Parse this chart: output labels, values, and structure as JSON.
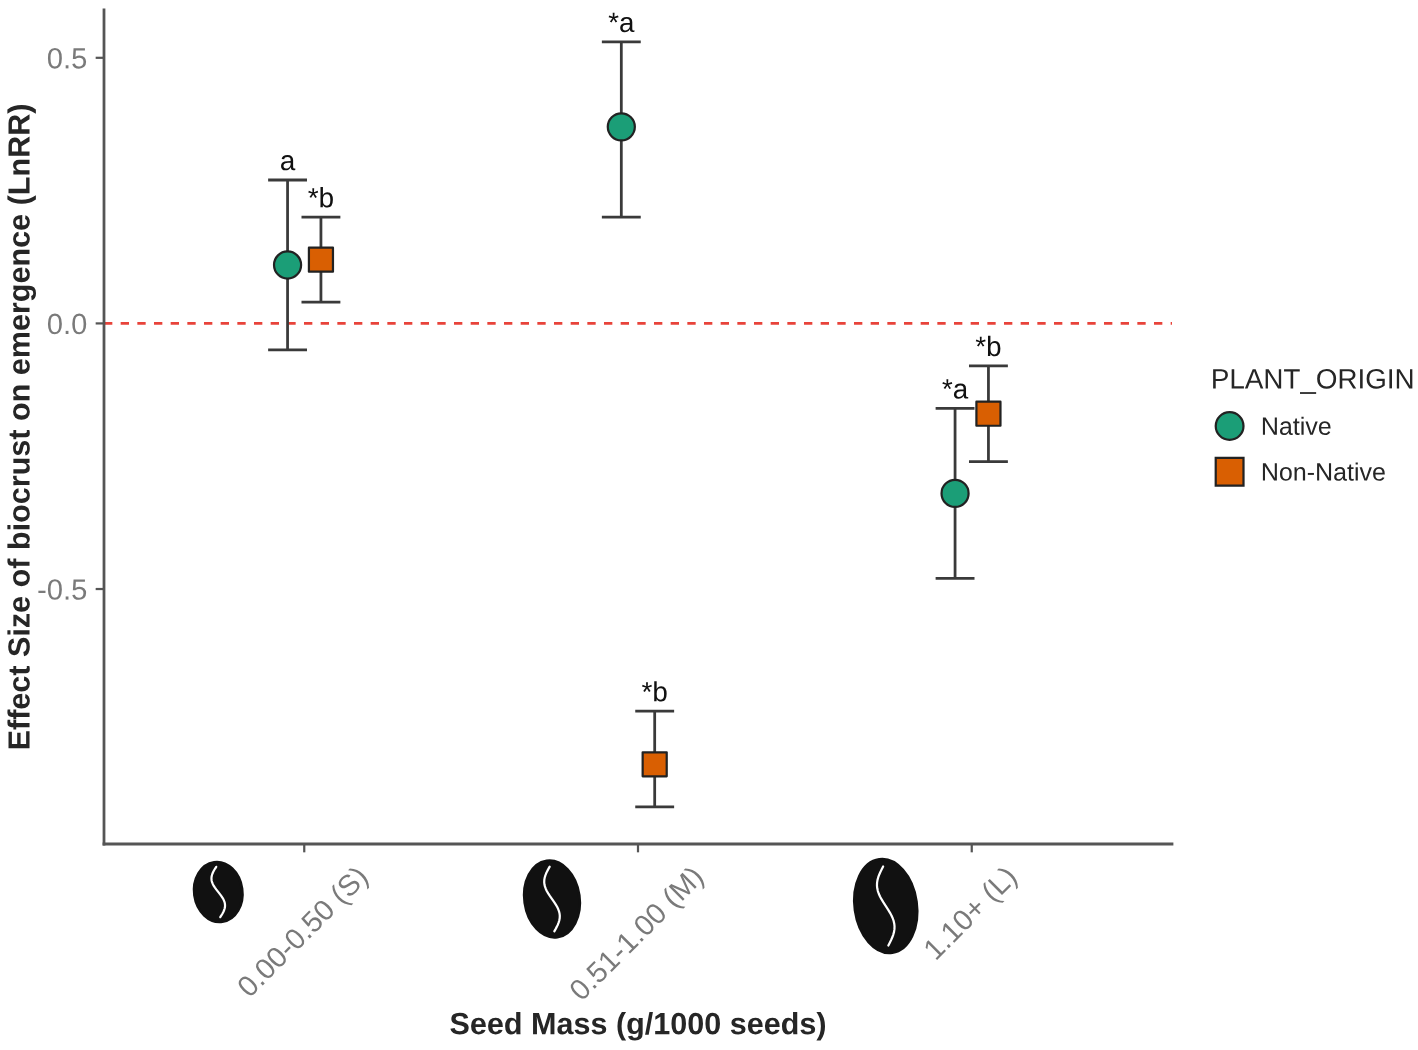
{
  "chart_data": {
    "type": "scatter",
    "xlabel": "Seed Mass (g/1000 seeds)",
    "ylabel": "Effect Size of biocrust on emergence (LnRR)",
    "legend_title": "PLANT_ORIGIN",
    "legend": "right",
    "categories": [
      "0.00-0.50 (S)",
      "0.51-1.00 (M)",
      "1.10+ (L)"
    ],
    "series": [
      {
        "name": "Native",
        "color": "#1b9e77",
        "marker": "circle",
        "values": [
          0.11,
          0.37,
          -0.32
        ],
        "errors": [
          [
            -0.05,
            0.27
          ],
          [
            0.2,
            0.53
          ],
          [
            -0.48,
            -0.16
          ]
        ]
      },
      {
        "name": "Non-Native",
        "color": "#d95f02",
        "marker": "square",
        "values": [
          0.12,
          -0.83,
          -0.17
        ],
        "errors": [
          [
            0.04,
            0.2
          ],
          [
            -0.91,
            -0.73
          ],
          [
            -0.26,
            -0.08
          ]
        ]
      }
    ],
    "ylim": [
      -0.98,
      0.59
    ],
    "yticks": [
      {
        "value": -0.5,
        "label": "-0.5"
      },
      {
        "value": 0,
        "label": "0.0"
      },
      0.5
    ],
    "ref_lines": [
      {
        "axis": "y",
        "value": 0,
        "color": "#e8433a",
        "line_style": "dashed"
      }
    ],
    "annotations": [
      {
        "text": "a",
        "x": "0.00-0.50 (S)",
        "y": 0.27
      },
      {
        "text": "*b",
        "x": "0.00-0.50 (S)",
        "y": 0.2
      },
      {
        "text": "*a",
        "x": "0.51-1.00 (M)",
        "y": 0.53
      },
      {
        "text": "*b",
        "x": "0.51-1.00 (M)",
        "y": -0.73
      },
      {
        "text": "*a",
        "x": "1.10+ (L)",
        "y": -0.16
      },
      {
        "text": "*b",
        "x": "1.10+ (L)",
        "y": -0.08
      }
    ]
  }
}
